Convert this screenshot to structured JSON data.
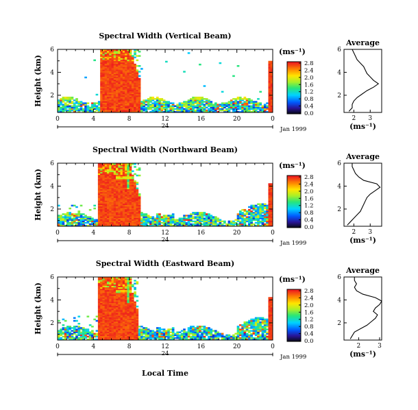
{
  "x_axis_label": "Local Time",
  "date_label": "Jan 1999",
  "unit_label": "(ms⁻¹)",
  "average_title": "Average",
  "chart_data": [
    {
      "type": "heatmap",
      "title": "Spectral Width (Vertical Beam)",
      "ylabel": "Height (km)",
      "xlabel": "",
      "x_ticks": [
        "0",
        "4",
        "8",
        "12",
        "16",
        "20",
        "0"
      ],
      "day_label": "24",
      "y_ticks": [
        "2",
        "4",
        "6"
      ],
      "xlim": [
        0,
        24
      ],
      "ylim": [
        0.5,
        6
      ],
      "colorbar_ticks": [
        "0.0",
        "0.4",
        "0.8",
        "1.2",
        "1.6",
        "2.0",
        "2.4",
        "2.8"
      ],
      "colorbar_range": [
        0,
        3.0
      ],
      "average": {
        "x_ticks": [
          "2",
          "3"
        ],
        "xlim": [
          1.4,
          3.7
        ],
        "heights": [
          0.6,
          0.9,
          1.2,
          1.5,
          1.8,
          2.1,
          2.4,
          2.7,
          3.0,
          3.3,
          3.6,
          3.9,
          4.2,
          4.5,
          4.8,
          5.1,
          5.4,
          5.7,
          6.0
        ],
        "values": [
          1.7,
          1.9,
          1.9,
          2.0,
          2.2,
          2.5,
          2.8,
          3.2,
          3.5,
          3.2,
          3.0,
          2.8,
          2.7,
          2.6,
          2.4,
          2.2,
          2.1,
          2.0,
          1.9
        ]
      }
    },
    {
      "type": "heatmap",
      "title": "Spectral Width (Northward Beam)",
      "ylabel": "Height (km)",
      "xlabel": "",
      "x_ticks": [
        "0",
        "4",
        "8",
        "12",
        "16",
        "20",
        "0"
      ],
      "day_label": "24",
      "y_ticks": [
        "2",
        "4",
        "6"
      ],
      "xlim": [
        0,
        24
      ],
      "ylim": [
        0.5,
        6
      ],
      "colorbar_ticks": [
        "0.0",
        "0.4",
        "0.8",
        "1.2",
        "1.6",
        "2.0",
        "2.4",
        "2.8"
      ],
      "colorbar_range": [
        0,
        3.0
      ],
      "average": {
        "x_ticks": [
          "2",
          "3"
        ],
        "xlim": [
          1.4,
          3.7
        ],
        "heights": [
          0.6,
          0.9,
          1.2,
          1.5,
          1.8,
          2.1,
          2.4,
          2.7,
          3.0,
          3.3,
          3.6,
          3.9,
          4.2,
          4.5,
          4.8,
          5.1,
          5.4,
          5.7,
          6.0
        ],
        "values": [
          1.6,
          1.8,
          2.0,
          2.2,
          2.4,
          2.5,
          2.6,
          2.7,
          2.8,
          3.0,
          3.3,
          3.6,
          3.4,
          2.6,
          2.3,
          2.1,
          2.0,
          1.9,
          1.9
        ]
      }
    },
    {
      "type": "heatmap",
      "title": "Spectral Width (Eastward Beam)",
      "ylabel": "Height (km)",
      "xlabel": "Local Time",
      "x_ticks": [
        "0",
        "4",
        "8",
        "12",
        "16",
        "20",
        "0"
      ],
      "day_label": "24",
      "y_ticks": [
        "2",
        "4",
        "6"
      ],
      "xlim": [
        0,
        24
      ],
      "ylim": [
        0.5,
        6
      ],
      "colorbar_ticks": [
        "0.0",
        "0.4",
        "0.8",
        "1.2",
        "1.6",
        "2.0",
        "2.4",
        "2.8"
      ],
      "colorbar_range": [
        0,
        3.0
      ],
      "average": {
        "x_ticks": [
          "2",
          "3"
        ],
        "xlim": [
          1.3,
          3.1
        ],
        "heights": [
          0.6,
          0.9,
          1.2,
          1.5,
          1.8,
          2.1,
          2.4,
          2.7,
          3.0,
          3.3,
          3.6,
          3.9,
          4.2,
          4.5,
          4.8,
          5.1,
          5.4,
          5.7,
          6.0
        ],
        "values": [
          1.6,
          1.7,
          1.8,
          2.1,
          2.4,
          2.6,
          2.8,
          2.9,
          2.7,
          2.8,
          3.0,
          3.1,
          2.8,
          2.2,
          1.9,
          1.8,
          1.9,
          1.8,
          1.8
        ]
      }
    }
  ]
}
